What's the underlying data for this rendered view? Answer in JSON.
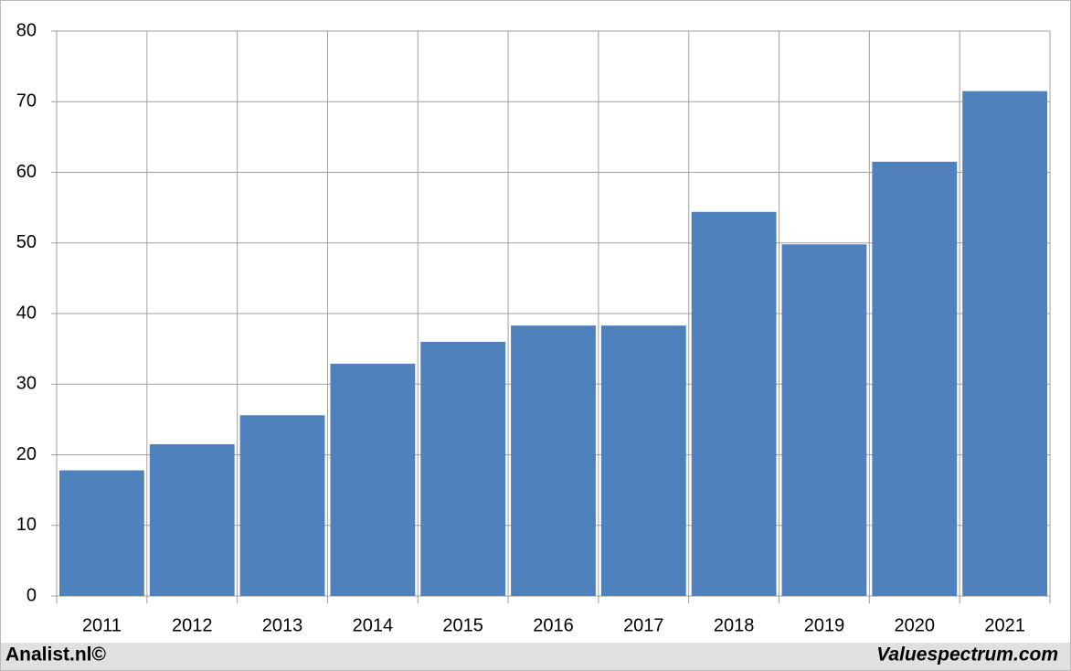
{
  "chart_data": {
    "type": "bar",
    "categories": [
      "2011",
      "2012",
      "2013",
      "2014",
      "2015",
      "2016",
      "2017",
      "2018",
      "2019",
      "2020",
      "2021"
    ],
    "values": [
      17.8,
      21.5,
      25.6,
      32.9,
      36.0,
      38.3,
      38.3,
      54.4,
      49.8,
      61.5,
      71.5
    ],
    "color": "#4f81bd",
    "ylim": [
      0,
      80
    ],
    "yticks": [
      0,
      10,
      20,
      30,
      40,
      50,
      60,
      70,
      80
    ],
    "grid": true,
    "source_left": "Analist.nl©",
    "source_right": "Valuespectrum.com"
  }
}
